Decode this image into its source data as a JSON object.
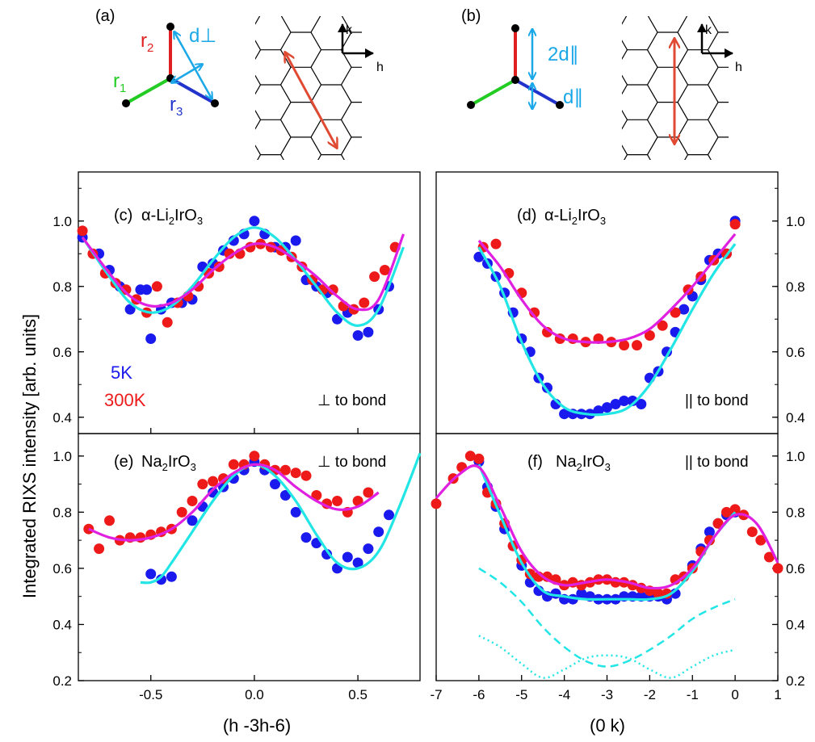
{
  "figure": {
    "ylabel": "Integrated RIXS intensity [arb. units]",
    "xlabel_left": "(h   -3h-6)",
    "xlabel_right": "(0    k)"
  },
  "diagram_a": {
    "tag": "(a)",
    "r1": "r",
    "r1_sub": "1",
    "r2": "r",
    "r2_sub": "2",
    "r3": "r",
    "r3_sub": "3",
    "d": "d⊥",
    "k": "k",
    "h": "h"
  },
  "diagram_b": {
    "tag": "(b)",
    "d2": "2d∥",
    "d1": "d∥",
    "k": "k",
    "h": "h"
  },
  "colors": {
    "r1": "#22cc22",
    "r2": "#e02020",
    "r3": "#2233cc",
    "d_arrow": "#1aa8e8",
    "q_arrow": "#e04a33",
    "blue": "#1a1aee",
    "red": "#ee1a1a",
    "fit_5k": "#22e5e5",
    "fit_300k": "#e020e0"
  },
  "legend": {
    "blue_label": "5K",
    "red_label": "300K"
  },
  "chart_data": [
    {
      "panel": "(c)",
      "type": "scatter",
      "compound": "α-Li2IrO3",
      "annotation": "⊥ to bond",
      "xlim": [
        -0.85,
        0.8
      ],
      "ylim": [
        0.35,
        1.15
      ],
      "xticks": [
        "-0.5",
        "0.0",
        "0.5"
      ],
      "yticks": [
        "0.4",
        "0.6",
        "0.8",
        "1.0"
      ],
      "series": [
        {
          "name": "5K",
          "x": [
            -0.83,
            -0.75,
            -0.7,
            -0.65,
            -0.6,
            -0.55,
            -0.52,
            -0.5,
            -0.45,
            -0.4,
            -0.35,
            -0.3,
            -0.25,
            -0.2,
            -0.15,
            -0.1,
            -0.05,
            0.0,
            0.05,
            0.1,
            0.15,
            0.2,
            0.25,
            0.3,
            0.35,
            0.4,
            0.45,
            0.5,
            0.55,
            0.6,
            0.65
          ],
          "y": [
            0.95,
            0.9,
            0.85,
            0.8,
            0.73,
            0.79,
            0.79,
            0.64,
            0.73,
            0.75,
            0.75,
            0.76,
            0.86,
            0.87,
            0.91,
            0.94,
            0.96,
            1.0,
            0.96,
            0.92,
            0.92,
            0.94,
            0.82,
            0.8,
            0.78,
            0.7,
            0.72,
            0.65,
            0.66,
            0.73,
            0.8
          ]
        },
        {
          "name": "300K",
          "x": [
            -0.83,
            -0.78,
            -0.72,
            -0.67,
            -0.62,
            -0.57,
            -0.52,
            -0.47,
            -0.42,
            -0.37,
            -0.32,
            -0.27,
            -0.22,
            -0.17,
            -0.12,
            -0.07,
            -0.02,
            0.03,
            0.08,
            0.13,
            0.18,
            0.23,
            0.28,
            0.33,
            0.38,
            0.43,
            0.48,
            0.53,
            0.58,
            0.63,
            0.68
          ],
          "y": [
            0.97,
            0.9,
            0.84,
            0.81,
            0.79,
            0.76,
            0.72,
            0.8,
            0.69,
            0.75,
            0.77,
            0.8,
            0.84,
            0.86,
            0.9,
            0.9,
            0.92,
            0.93,
            0.92,
            0.91,
            0.89,
            0.86,
            0.82,
            0.79,
            0.79,
            0.74,
            0.73,
            0.75,
            0.83,
            0.85,
            0.92
          ]
        }
      ],
      "fits": [
        {
          "name": "5K",
          "x": [
            -0.83,
            -0.7,
            -0.6,
            -0.5,
            -0.4,
            -0.3,
            -0.2,
            -0.1,
            0.0,
            0.1,
            0.2,
            0.3,
            0.4,
            0.5,
            0.6,
            0.72
          ],
          "y": [
            0.95,
            0.83,
            0.75,
            0.72,
            0.74,
            0.8,
            0.88,
            0.95,
            0.98,
            0.95,
            0.88,
            0.8,
            0.72,
            0.68,
            0.73,
            0.92
          ]
        },
        {
          "name": "300K",
          "x": [
            -0.83,
            -0.7,
            -0.6,
            -0.5,
            -0.4,
            -0.3,
            -0.2,
            -0.1,
            0.0,
            0.1,
            0.2,
            0.3,
            0.4,
            0.5,
            0.6,
            0.72
          ],
          "y": [
            0.95,
            0.84,
            0.77,
            0.74,
            0.75,
            0.79,
            0.85,
            0.9,
            0.93,
            0.92,
            0.88,
            0.83,
            0.77,
            0.73,
            0.76,
            0.96
          ]
        }
      ]
    },
    {
      "panel": "(d)",
      "type": "scatter",
      "compound": "α-Li2IrO3",
      "annotation": "|| to bond",
      "xlim": [
        -7,
        1
      ],
      "ylim": [
        0.35,
        1.15
      ],
      "xticks": [],
      "yticks": [
        "0.4",
        "0.6",
        "0.8",
        "1.0"
      ],
      "series": [
        {
          "name": "5K",
          "x": [
            -6.0,
            -5.8,
            -5.6,
            -5.4,
            -5.2,
            -5.0,
            -4.8,
            -4.6,
            -4.4,
            -4.2,
            -4.0,
            -3.8,
            -3.6,
            -3.4,
            -3.2,
            -3.0,
            -2.8,
            -2.6,
            -2.4,
            -2.2,
            -2.0,
            -1.8,
            -1.6,
            -1.4,
            -1.2,
            -1.0,
            -0.8,
            -0.6,
            -0.4,
            -0.2,
            0.0
          ],
          "y": [
            0.89,
            0.87,
            0.83,
            0.78,
            0.72,
            0.64,
            0.6,
            0.52,
            0.49,
            0.44,
            0.41,
            0.41,
            0.41,
            0.41,
            0.42,
            0.43,
            0.44,
            0.45,
            0.45,
            0.44,
            0.52,
            0.54,
            0.6,
            0.66,
            0.73,
            0.77,
            0.82,
            0.88,
            0.9,
            0.9,
            1.0
          ]
        },
        {
          "name": "300K",
          "x": [
            -5.9,
            -5.6,
            -5.3,
            -5.0,
            -4.7,
            -4.4,
            -4.1,
            -3.8,
            -3.5,
            -3.2,
            -2.9,
            -2.6,
            -2.3,
            -2.0,
            -1.7,
            -1.4,
            -1.1,
            -0.8,
            -0.5,
            -0.2,
            0.0
          ],
          "y": [
            0.92,
            0.93,
            0.84,
            0.78,
            0.72,
            0.66,
            0.64,
            0.64,
            0.63,
            0.64,
            0.63,
            0.62,
            0.62,
            0.65,
            0.68,
            0.72,
            0.79,
            0.83,
            0.88,
            0.9,
            0.99
          ]
        }
      ],
      "fits": [
        {
          "name": "5K",
          "x": [
            -6.0,
            -5.5,
            -5.0,
            -4.5,
            -4.0,
            -3.5,
            -3.0,
            -2.5,
            -2.0,
            -1.5,
            -1.0,
            -0.5,
            0.0
          ],
          "y": [
            0.92,
            0.8,
            0.63,
            0.5,
            0.43,
            0.41,
            0.41,
            0.43,
            0.5,
            0.61,
            0.73,
            0.84,
            0.93
          ]
        },
        {
          "name": "300K",
          "x": [
            -6.0,
            -5.5,
            -5.0,
            -4.5,
            -4.0,
            -3.5,
            -3.0,
            -2.5,
            -2.0,
            -1.5,
            -1.0,
            -0.5,
            0.0
          ],
          "y": [
            0.94,
            0.86,
            0.76,
            0.68,
            0.64,
            0.63,
            0.63,
            0.64,
            0.67,
            0.73,
            0.8,
            0.88,
            0.96
          ]
        }
      ]
    },
    {
      "panel": "(e)",
      "type": "scatter",
      "compound": "Na2IrO3",
      "annotation": "⊥ to bond",
      "xlim": [
        -0.85,
        0.8
      ],
      "ylim": [
        0.2,
        1.08
      ],
      "xticks": [
        "-0.5",
        "0.0",
        "0.5"
      ],
      "yticks": [
        "0.2",
        "0.4",
        "0.6",
        "0.8",
        "1.0"
      ],
      "series": [
        {
          "name": "5K",
          "x": [
            -0.5,
            -0.45,
            -0.4,
            -0.3,
            -0.25,
            -0.2,
            -0.15,
            -0.1,
            -0.05,
            0.0,
            0.05,
            0.1,
            0.15,
            0.2,
            0.25,
            0.3,
            0.35,
            0.4,
            0.45,
            0.5,
            0.55,
            0.6,
            0.65
          ],
          "y": [
            0.58,
            0.56,
            0.57,
            0.77,
            0.82,
            0.87,
            0.89,
            0.92,
            0.95,
            0.98,
            0.95,
            0.9,
            0.86,
            0.8,
            0.71,
            0.69,
            0.65,
            0.6,
            0.64,
            0.62,
            0.67,
            0.73,
            0.79
          ]
        },
        {
          "name": "300K",
          "x": [
            -0.8,
            -0.75,
            -0.7,
            -0.65,
            -0.6,
            -0.55,
            -0.5,
            -0.45,
            -0.4,
            -0.35,
            -0.3,
            -0.25,
            -0.2,
            -0.15,
            -0.1,
            -0.05,
            0.0,
            0.05,
            0.1,
            0.15,
            0.2,
            0.25,
            0.3,
            0.35,
            0.4,
            0.45,
            0.5,
            0.55
          ],
          "y": [
            0.74,
            0.67,
            0.77,
            0.7,
            0.71,
            0.71,
            0.72,
            0.73,
            0.74,
            0.8,
            0.84,
            0.9,
            0.91,
            0.92,
            0.97,
            0.97,
            1.0,
            0.97,
            0.95,
            0.95,
            0.94,
            0.93,
            0.86,
            0.83,
            0.84,
            0.8,
            0.84,
            0.87
          ]
        }
      ],
      "fits": [
        {
          "name": "5K",
          "x": [
            -0.55,
            -0.5,
            -0.45,
            -0.4,
            -0.3,
            -0.2,
            -0.1,
            0.0,
            0.1,
            0.2,
            0.3,
            0.4,
            0.5,
            0.6,
            0.7,
            0.8
          ],
          "y": [
            0.55,
            0.55,
            0.57,
            0.62,
            0.73,
            0.84,
            0.93,
            0.97,
            0.93,
            0.84,
            0.72,
            0.62,
            0.6,
            0.66,
            0.82,
            1.01
          ]
        },
        {
          "name": "300K",
          "x": [
            -0.8,
            -0.7,
            -0.6,
            -0.5,
            -0.4,
            -0.3,
            -0.2,
            -0.1,
            0.0,
            0.1,
            0.2,
            0.3,
            0.4,
            0.5,
            0.6
          ],
          "y": [
            0.74,
            0.71,
            0.7,
            0.71,
            0.74,
            0.8,
            0.88,
            0.94,
            0.97,
            0.95,
            0.89,
            0.84,
            0.81,
            0.82,
            0.87
          ]
        }
      ]
    },
    {
      "panel": "(f)",
      "type": "scatter",
      "compound": "Na2IrO3",
      "annotation": "|| to bond",
      "xlim": [
        -7,
        1
      ],
      "ylim": [
        0.2,
        1.08
      ],
      "xticks": [
        "-7",
        "-6",
        "-5",
        "-4",
        "-3",
        "-2",
        "-1",
        "0",
        "1"
      ],
      "yticks": [
        "0.2",
        "0.4",
        "0.6",
        "0.8",
        "1.0"
      ],
      "series": [
        {
          "name": "5K",
          "x": [
            -6.0,
            -5.8,
            -5.6,
            -5.4,
            -5.2,
            -5.0,
            -4.8,
            -4.6,
            -4.4,
            -4.2,
            -4.0,
            -3.8,
            -3.6,
            -3.4,
            -3.2,
            -3.0,
            -2.8,
            -2.6,
            -2.4,
            -2.2,
            -2.0,
            -1.8,
            -1.6,
            -1.4,
            -1.2,
            -1.0,
            -0.8,
            -0.6,
            -0.4,
            -0.2,
            0.0
          ],
          "y": [
            0.98,
            0.89,
            0.82,
            0.74,
            0.68,
            0.61,
            0.55,
            0.52,
            0.5,
            0.51,
            0.49,
            0.49,
            0.51,
            0.5,
            0.49,
            0.49,
            0.49,
            0.5,
            0.5,
            0.5,
            0.5,
            0.5,
            0.49,
            0.51,
            0.57,
            0.61,
            0.67,
            0.73,
            0.76,
            0.79,
            0.8
          ]
        },
        {
          "name": "300K",
          "x": [
            -7.0,
            -6.6,
            -6.4,
            -6.2,
            -6.0,
            -5.8,
            -5.6,
            -5.4,
            -5.2,
            -5.0,
            -4.8,
            -4.6,
            -4.4,
            -4.2,
            -4.0,
            -3.8,
            -3.6,
            -3.4,
            -3.2,
            -3.0,
            -2.8,
            -2.6,
            -2.4,
            -2.2,
            -2.0,
            -1.8,
            -1.6,
            -1.4,
            -1.2,
            -1.0,
            -0.8,
            -0.6,
            -0.4,
            -0.2,
            0.0,
            0.2,
            0.4,
            0.6,
            0.8,
            1.0
          ],
          "y": [
            0.83,
            0.92,
            0.96,
            1.0,
            0.99,
            0.87,
            0.83,
            0.76,
            0.68,
            0.63,
            0.58,
            0.57,
            0.57,
            0.56,
            0.54,
            0.55,
            0.54,
            0.55,
            0.56,
            0.56,
            0.55,
            0.55,
            0.54,
            0.53,
            0.52,
            0.51,
            0.51,
            0.56,
            0.57,
            0.6,
            0.66,
            0.7,
            0.76,
            0.8,
            0.81,
            0.79,
            0.73,
            0.7,
            0.64,
            0.6
          ]
        }
      ],
      "fits": [
        {
          "name": "5K",
          "x": [
            -6.0,
            -5.5,
            -5.0,
            -4.5,
            -4.0,
            -3.5,
            -3.0,
            -2.5,
            -2.0,
            -1.5,
            -1.0,
            -0.5,
            0.0
          ],
          "y": [
            0.97,
            0.79,
            0.62,
            0.52,
            0.5,
            0.49,
            0.49,
            0.49,
            0.49,
            0.51,
            0.59,
            0.71,
            0.8
          ]
        },
        {
          "name": "300K",
          "x": [
            -7.0,
            -6.5,
            -6.0,
            -5.5,
            -5.0,
            -4.5,
            -4.0,
            -3.5,
            -3.0,
            -2.5,
            -2.0,
            -1.5,
            -1.0,
            -0.5,
            0.0,
            0.5,
            1.0
          ],
          "y": [
            0.85,
            0.93,
            0.96,
            0.82,
            0.66,
            0.57,
            0.54,
            0.55,
            0.56,
            0.55,
            0.53,
            0.54,
            0.6,
            0.71,
            0.79,
            0.76,
            0.62
          ]
        }
      ],
      "components": [
        {
          "style": "dashed",
          "x": [
            -6.0,
            -5.5,
            -5.0,
            -4.5,
            -4.0,
            -3.5,
            -3.0,
            -2.5,
            -2.0,
            -1.5,
            -1.0,
            -0.5,
            0.0
          ],
          "y": [
            0.6,
            0.55,
            0.48,
            0.39,
            0.32,
            0.27,
            0.25,
            0.27,
            0.31,
            0.36,
            0.42,
            0.46,
            0.49
          ]
        },
        {
          "style": "dotted",
          "x": [
            -6.0,
            -5.5,
            -5.0,
            -4.5,
            -4.0,
            -3.5,
            -3.0,
            -2.5,
            -2.0,
            -1.5,
            -1.0,
            -0.5,
            0.0
          ],
          "y": [
            0.36,
            0.32,
            0.26,
            0.21,
            0.24,
            0.28,
            0.29,
            0.28,
            0.24,
            0.21,
            0.25,
            0.29,
            0.31
          ]
        }
      ]
    }
  ]
}
